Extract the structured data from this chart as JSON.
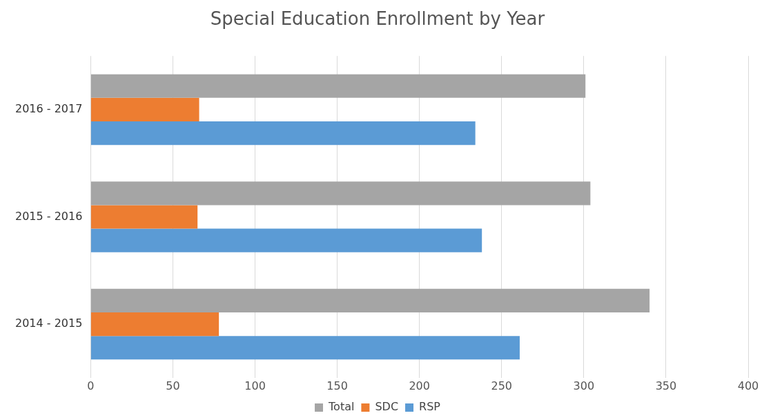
{
  "chart_data": {
    "type": "bar",
    "orientation": "horizontal",
    "title": "Special Education Enrollment by Year",
    "categories": [
      "2016 - 2017",
      "2015 - 2016",
      "2014 - 2015"
    ],
    "series": [
      {
        "name": "Total",
        "color": "#a5a5a5",
        "values": [
          301,
          304,
          340
        ]
      },
      {
        "name": "SDC",
        "color": "#ed7d31",
        "values": [
          66,
          65,
          78
        ]
      },
      {
        "name": "RSP",
        "color": "#5b9bd5",
        "values": [
          234,
          238,
          261
        ]
      }
    ],
    "xlim": [
      0,
      400
    ],
    "xticks": [
      0,
      50,
      100,
      150,
      200,
      250,
      300,
      350,
      400
    ],
    "grid": "x",
    "legend": "bottom"
  }
}
